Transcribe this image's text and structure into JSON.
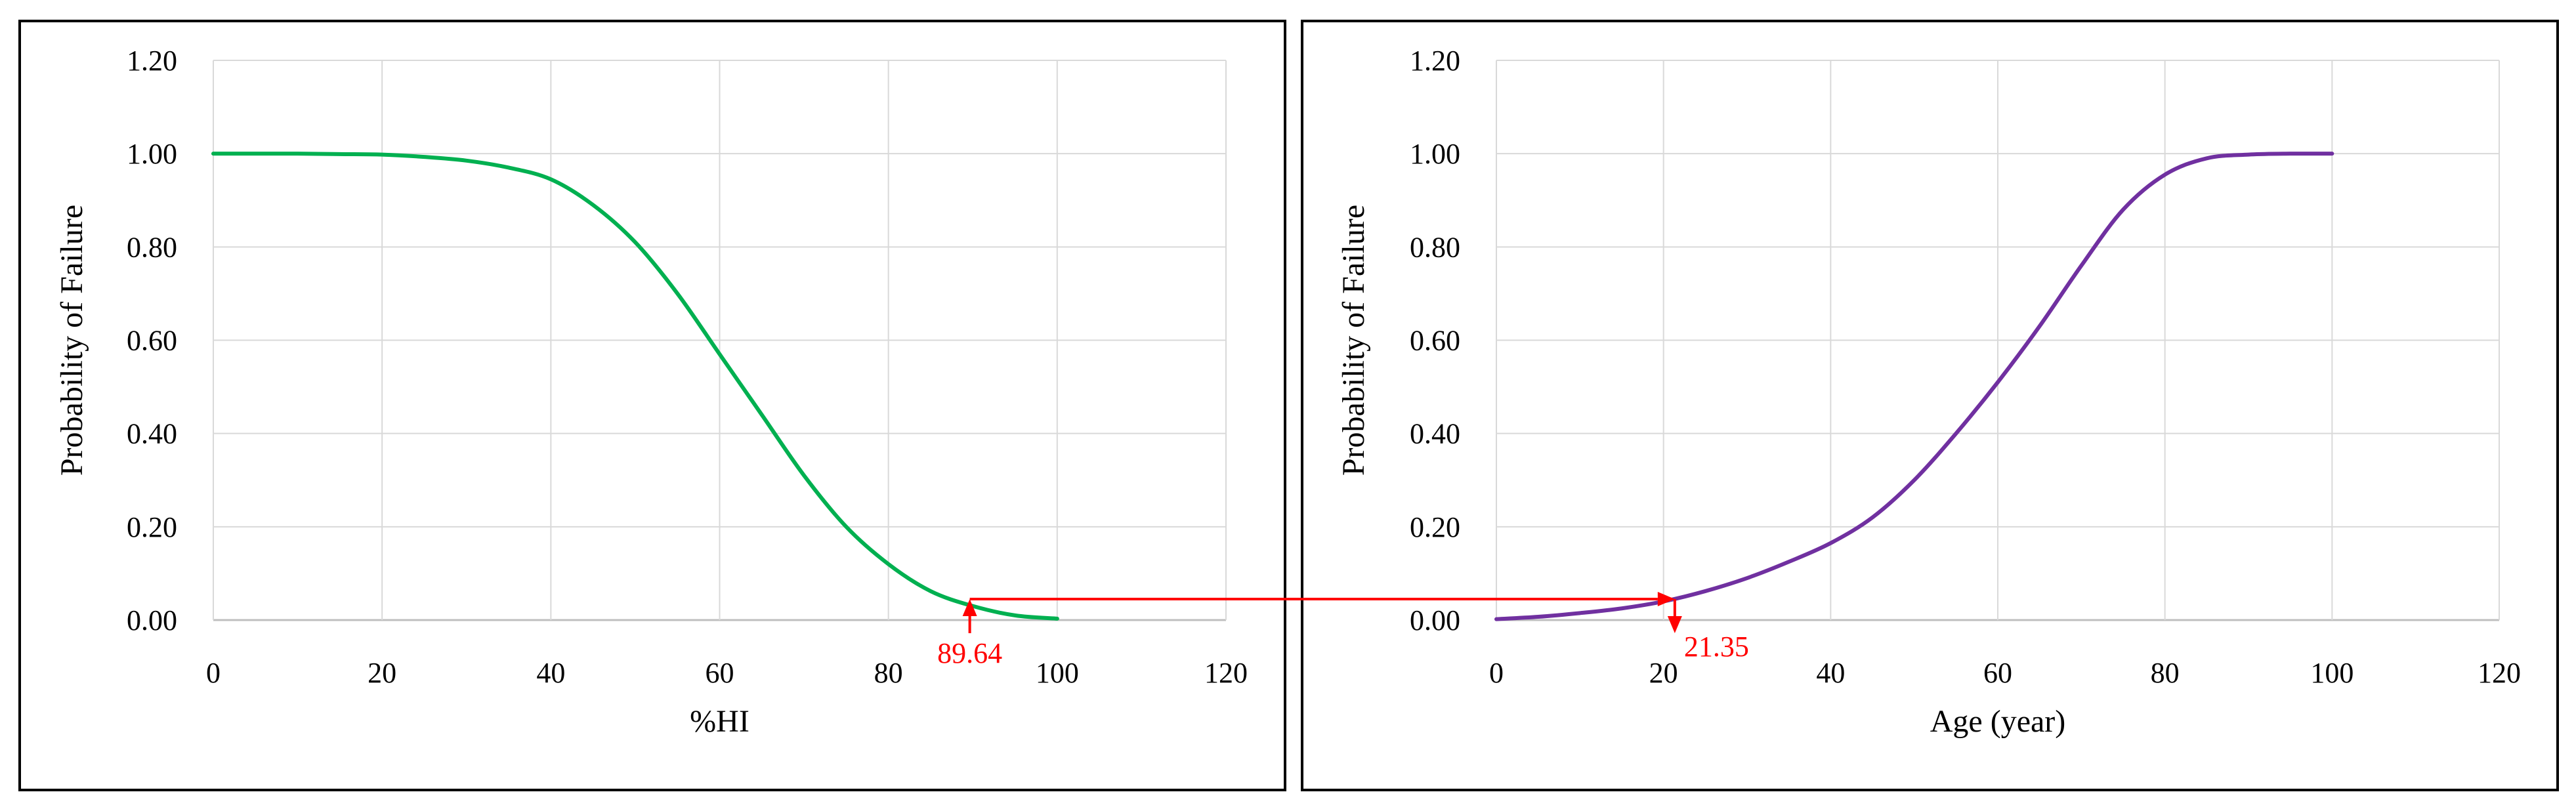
{
  "chart_data": [
    {
      "type": "line",
      "title": "",
      "xlabel": "%HI",
      "ylabel": "Probability of Failure",
      "xlim": [
        0,
        120
      ],
      "ylim": [
        0,
        1.2
      ],
      "x_ticks": [
        "0",
        "20",
        "40",
        "60",
        "80",
        "100",
        "120"
      ],
      "y_ticks": [
        "0.00",
        "0.20",
        "0.40",
        "0.60",
        "0.80",
        "1.00",
        "1.20"
      ],
      "grid": true,
      "legend": "none",
      "series": [
        {
          "color": "#00b050",
          "x": [
            0,
            5,
            10,
            15,
            20,
            25,
            30,
            35,
            40,
            45,
            50,
            55,
            60,
            65,
            70,
            75,
            80,
            85,
            90,
            95,
            100
          ],
          "y": [
            1.0,
            1.0,
            1.0,
            0.999,
            0.998,
            0.993,
            0.985,
            0.97,
            0.945,
            0.89,
            0.81,
            0.7,
            0.57,
            0.44,
            0.31,
            0.2,
            0.12,
            0.062,
            0.03,
            0.01,
            0.003
          ]
        }
      ],
      "annotation": {
        "value": 89.64,
        "label": "89.64",
        "color": "#ff0000",
        "y": 0.045
      }
    },
    {
      "type": "line",
      "title": "",
      "xlabel": "Age (year)",
      "ylabel": "Probability of Failure",
      "xlim": [
        0,
        120
      ],
      "ylim": [
        0,
        1.2
      ],
      "x_ticks": [
        "0",
        "20",
        "40",
        "60",
        "80",
        "100",
        "120"
      ],
      "y_ticks": [
        "0.00",
        "0.20",
        "0.40",
        "0.60",
        "0.80",
        "1.00",
        "1.20"
      ],
      "grid": true,
      "legend": "none",
      "series": [
        {
          "color": "#7030a0",
          "x": [
            0,
            5,
            10,
            15,
            20,
            25,
            30,
            35,
            40,
            45,
            50,
            55,
            60,
            65,
            70,
            75,
            80,
            85,
            90,
            95,
            100
          ],
          "y": [
            0.002,
            0.007,
            0.015,
            0.025,
            0.04,
            0.062,
            0.09,
            0.125,
            0.165,
            0.22,
            0.3,
            0.4,
            0.51,
            0.63,
            0.76,
            0.88,
            0.955,
            0.99,
            0.998,
            1.0,
            1.0
          ]
        }
      ],
      "annotation": {
        "value": 21.35,
        "label": "21.35",
        "color": "#ff0000",
        "y": 0.045
      }
    }
  ]
}
